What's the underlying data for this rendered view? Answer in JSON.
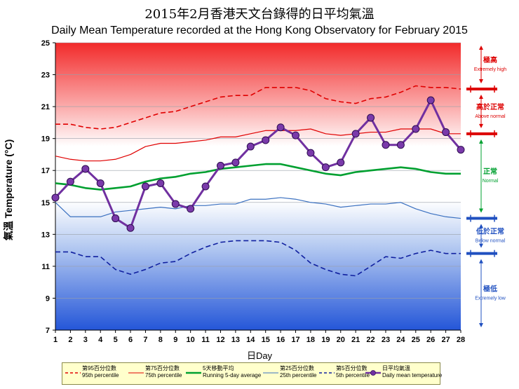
{
  "chart_data": {
    "type": "line",
    "title": "2015年2月香港天文台錄得的日平均氣溫",
    "subtitle": "Daily Mean Temperature recorded at the Hong Kong Observatory for February 2015",
    "xlabel": "日Day",
    "ylabel": "氣溫 Temperature (°C)",
    "ylim": [
      7,
      25
    ],
    "yticks": [
      7,
      9,
      11,
      13,
      15,
      17,
      19,
      21,
      23,
      25
    ],
    "x": [
      1,
      2,
      3,
      4,
      5,
      6,
      7,
      8,
      9,
      10,
      11,
      12,
      13,
      14,
      15,
      16,
      17,
      18,
      19,
      20,
      21,
      22,
      23,
      24,
      25,
      26,
      27,
      28
    ],
    "series": [
      {
        "name": "第95百分位數 95th percentile",
        "color": "#e00000",
        "style": "dashed",
        "values": [
          19.9,
          19.9,
          19.7,
          19.6,
          19.7,
          20.0,
          20.3,
          20.6,
          20.7,
          21.0,
          21.3,
          21.6,
          21.7,
          21.7,
          22.2,
          22.2,
          22.2,
          22.0,
          21.5,
          21.3,
          21.2,
          21.5,
          21.6,
          21.9,
          22.3,
          22.2,
          22.2,
          22.1
        ]
      },
      {
        "name": "第75百分位數 75th percentile",
        "color": "#e00000",
        "style": "solid-thin",
        "values": [
          17.9,
          17.7,
          17.6,
          17.6,
          17.7,
          18.0,
          18.5,
          18.7,
          18.7,
          18.8,
          18.9,
          19.1,
          19.1,
          19.3,
          19.5,
          19.5,
          19.5,
          19.6,
          19.3,
          19.2,
          19.3,
          19.4,
          19.4,
          19.6,
          19.6,
          19.6,
          19.3,
          19.3
        ]
      },
      {
        "name": "5天移動平均 Running 5-day average",
        "color": "#00a030",
        "style": "solid-thick",
        "values": [
          16.2,
          16.1,
          15.9,
          15.8,
          15.9,
          16.0,
          16.3,
          16.5,
          16.6,
          16.8,
          16.9,
          17.1,
          17.2,
          17.3,
          17.4,
          17.4,
          17.2,
          17.0,
          16.8,
          16.7,
          16.9,
          17.0,
          17.1,
          17.2,
          17.1,
          16.9,
          16.8,
          16.8
        ]
      },
      {
        "name": "第25百分位數 25th percentile",
        "color": "#3a70c0",
        "style": "solid-thin",
        "values": [
          15.0,
          14.1,
          14.1,
          14.1,
          14.4,
          14.5,
          14.6,
          14.7,
          14.6,
          14.8,
          14.8,
          14.9,
          14.9,
          15.2,
          15.2,
          15.3,
          15.2,
          15.0,
          14.9,
          14.7,
          14.8,
          14.9,
          14.9,
          15.0,
          14.6,
          14.3,
          14.1,
          14.0
        ]
      },
      {
        "name": "第5百分位數 5th percentile",
        "color": "#1020a0",
        "style": "dashed",
        "values": [
          11.9,
          11.9,
          11.6,
          11.6,
          10.8,
          10.5,
          10.8,
          11.2,
          11.3,
          11.8,
          12.2,
          12.5,
          12.6,
          12.6,
          12.6,
          12.5,
          12.0,
          11.2,
          10.8,
          10.5,
          10.4,
          11.0,
          11.6,
          11.5,
          11.8,
          12.0,
          11.8,
          11.8
        ]
      },
      {
        "name": "日平均氣溫 Daily mean temperature",
        "color": "#7030a0",
        "style": "markers",
        "values": [
          15.3,
          16.3,
          17.1,
          16.2,
          14.0,
          13.4,
          16.0,
          16.2,
          14.9,
          14.6,
          16.0,
          17.3,
          17.5,
          18.5,
          18.9,
          19.7,
          19.2,
          18.1,
          17.2,
          17.5,
          19.3,
          20.3,
          18.6,
          18.6,
          19.6,
          21.4,
          19.4,
          18.3
        ]
      }
    ],
    "bands": [
      {
        "name_zh": "極高",
        "name_en": "Extremely high",
        "color": "#dd0000"
      },
      {
        "name_zh": "高於正常",
        "name_en": "Above normal",
        "color": "#dd0000"
      },
      {
        "name_zh": "正常",
        "name_en": "Normal",
        "color": "#00a030"
      },
      {
        "name_zh": "低於正常",
        "name_en": "Below normal",
        "color": "#2050c0"
      },
      {
        "name_zh": "極低",
        "name_en": "Extremely low",
        "color": "#2050c0"
      }
    ],
    "legend_position": "bottom"
  },
  "legend": [
    {
      "zh": "第95百分位數",
      "en": "95th percentile"
    },
    {
      "zh": "第75百分位數",
      "en": "75th percentile"
    },
    {
      "zh": "5天移動平均",
      "en": "Running 5-day average"
    },
    {
      "zh": "第25百分位數",
      "en": "25th percentile"
    },
    {
      "zh": "第5百分位數",
      "en": "5th percentile"
    },
    {
      "zh": "日平均氣溫",
      "en": "Daily mean temperature"
    }
  ]
}
